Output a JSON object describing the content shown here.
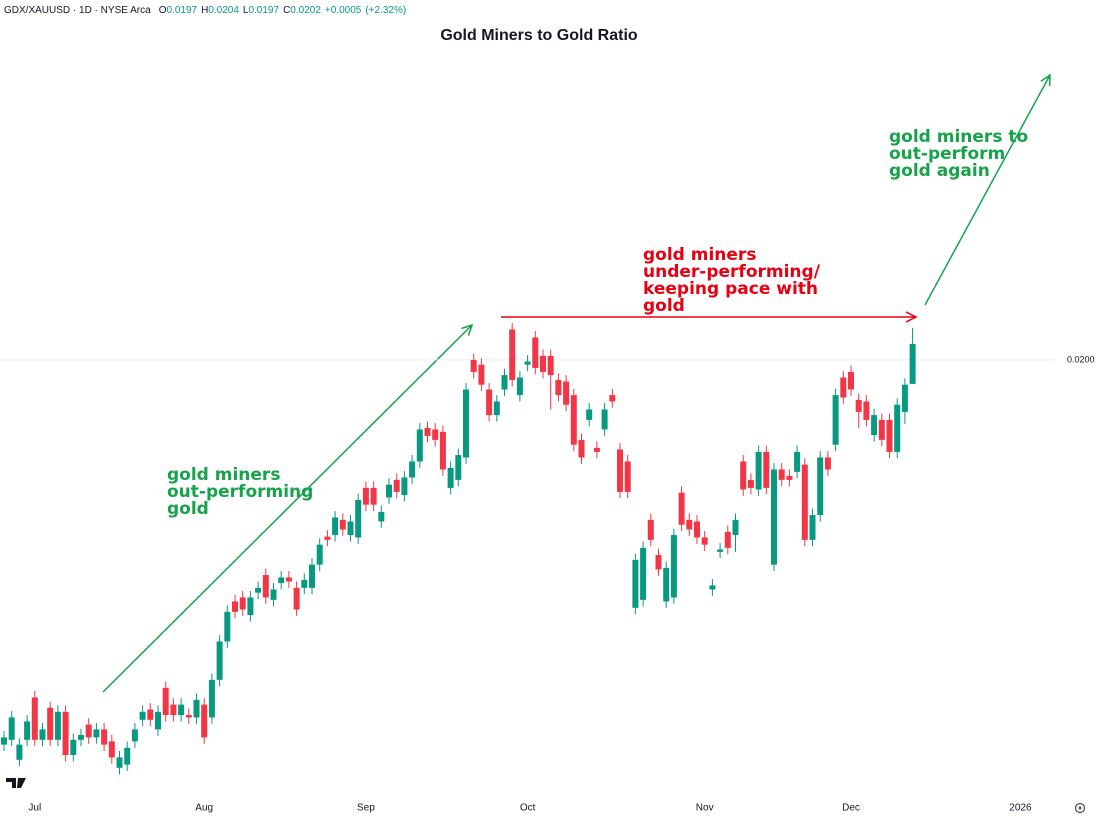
{
  "chart_data": {
    "type": "candlestick",
    "title": "Gold Miners to Gold Ratio",
    "header": {
      "symbol": "GDX/XAUUSD · 1D · NYSE Arca",
      "items": [
        {
          "letter": "O",
          "value": 0.0197
        },
        {
          "letter": "H",
          "value": 0.0204
        },
        {
          "letter": "L",
          "value": 0.0197
        },
        {
          "letter": "C",
          "value": 0.0202
        }
      ],
      "change": {
        "value": 0.0005,
        "label": "+0.0005"
      },
      "change_pct": {
        "value": 2.32,
        "label": "(+2.32%)"
      }
    },
    "up_color": "#089981",
    "down_color": "#f23645",
    "ylim": [
      0.01456,
      0.0245
    ],
    "yticks": [
      {
        "value": 0.02,
        "label": "0.0200"
      }
    ],
    "grid": true,
    "categories": [
      null,
      null,
      null,
      null,
      "Jul",
      null,
      null,
      null,
      null,
      null,
      null,
      null,
      null,
      null,
      null,
      null,
      null,
      null,
      null,
      null,
      null,
      null,
      null,
      null,
      null,
      null,
      "Aug",
      null,
      null,
      null,
      null,
      null,
      null,
      null,
      null,
      null,
      null,
      null,
      null,
      null,
      null,
      null,
      null,
      null,
      null,
      null,
      null,
      "Sep",
      null,
      null,
      null,
      null,
      null,
      null,
      null,
      null,
      null,
      null,
      null,
      null,
      null,
      null,
      null,
      null,
      null,
      null,
      null,
      null,
      "Oct",
      null,
      null,
      null,
      null,
      null,
      null,
      null,
      null,
      null,
      null,
      null,
      null,
      null,
      null,
      null,
      null,
      null,
      null,
      null,
      null,
      null,
      null,
      "Nov",
      null,
      null,
      null,
      null,
      null,
      null,
      null,
      null,
      null,
      null,
      null,
      null,
      null,
      null,
      null,
      null,
      null,
      null,
      "Dec",
      null,
      null,
      null,
      null,
      null,
      null,
      null,
      null,
      null,
      null,
      null,
      null,
      null,
      null,
      null,
      null,
      null,
      null,
      null,
      null,
      null,
      "2026"
    ],
    "open": [
      0.01519,
      0.01525,
      0.015,
      0.01525,
      0.01578,
      0.01525,
      0.01565,
      0.01525,
      0.0156,
      0.01506,
      0.01525,
      0.01544,
      0.01528,
      0.01538,
      0.01523,
      0.0149,
      0.01494,
      0.01523,
      0.0155,
      0.01563,
      0.01538,
      0.0159,
      0.01569,
      0.01556,
      0.01556,
      0.01553,
      0.01569,
      0.01553,
      0.016,
      0.01648,
      0.01698,
      0.01703,
      0.01681,
      0.01709,
      0.01731,
      0.017,
      0.01721,
      0.01728,
      0.01715,
      0.01715,
      0.01715,
      0.01744,
      0.01779,
      0.01781,
      0.018,
      0.01781,
      0.01778,
      0.0184,
      0.0184,
      0.01798,
      0.01828,
      0.0185,
      0.01831,
      0.01853,
      0.01873,
      0.01915,
      0.01913,
      0.0191,
      0.0184,
      0.0185,
      0.01878,
      0.02,
      0.01994,
      0.01963,
      0.01931,
      0.01963,
      0.02038,
      0.01956,
      0.01994,
      0.02028,
      0.02005,
      0.02005,
      0.01975,
      0.01973,
      0.01956,
      0.019,
      0.01925,
      0.0189,
      0.01913,
      0.01956,
      0.01888,
      0.01873,
      0.0169,
      0.017,
      0.018,
      0.01756,
      0.01698,
      0.01703,
      0.01834,
      0.018,
      0.01798,
      0.01778,
      0.01713,
      0.0176,
      0.01785,
      0.01781,
      0.01873,
      0.0185,
      0.01838,
      0.01885,
      0.01744,
      0.01863,
      0.01855,
      0.0186,
      0.01869,
      0.01775,
      0.01806,
      0.01878,
      0.01894,
      0.01978,
      0.01985,
      0.0195,
      0.01948,
      0.01906,
      0.01925,
      0.01925,
      0.01885,
      0.01935,
      0.0197,
      null,
      null,
      null,
      null,
      null,
      null,
      null,
      null,
      null,
      null,
      null,
      null,
      null,
      null
    ],
    "high": [
      0.01536,
      0.01561,
      0.01527,
      0.01556,
      0.01586,
      0.01546,
      0.01573,
      0.01568,
      0.01568,
      0.01533,
      0.01539,
      0.01552,
      0.01546,
      0.01546,
      0.01531,
      0.01511,
      0.01523,
      0.01546,
      0.01568,
      0.01571,
      0.01568,
      0.01598,
      0.01577,
      0.01577,
      0.01564,
      0.01583,
      0.01577,
      0.01608,
      0.01656,
      0.01693,
      0.01706,
      0.01711,
      0.01711,
      0.01723,
      0.01739,
      0.01721,
      0.01736,
      0.01736,
      0.01723,
      0.01733,
      0.01752,
      0.01777,
      0.01787,
      0.01811,
      0.01808,
      0.01806,
      0.01833,
      0.01848,
      0.01848,
      0.01818,
      0.01852,
      0.01858,
      0.01861,
      0.01881,
      0.01921,
      0.01923,
      0.01921,
      0.01918,
      0.01873,
      0.01889,
      0.01971,
      0.02008,
      0.02002,
      0.01971,
      0.01956,
      0.01989,
      0.02046,
      0.01986,
      0.02006,
      0.02036,
      0.02013,
      0.02013,
      0.01983,
      0.01981,
      0.01964,
      0.01908,
      0.01946,
      0.01898,
      0.01946,
      0.01964,
      0.01896,
      0.01881,
      0.01758,
      0.01773,
      0.01808,
      0.01764,
      0.01748,
      0.01789,
      0.01842,
      0.01808,
      0.01806,
      0.01786,
      0.01726,
      0.01771,
      0.01793,
      0.01808,
      0.01881,
      0.01858,
      0.01893,
      0.01893,
      0.01871,
      0.01871,
      0.01863,
      0.01893,
      0.01877,
      0.01814,
      0.01886,
      0.01886,
      0.01964,
      0.01986,
      0.01993,
      0.01958,
      0.01956,
      0.01939,
      0.01933,
      0.01933,
      0.01952,
      0.01977,
      0.0204,
      null,
      null,
      null,
      null,
      null,
      null,
      null,
      null,
      null,
      null,
      null,
      null,
      null,
      null
    ],
    "low": [
      0.01511,
      0.01517,
      0.01492,
      0.01517,
      0.01517,
      0.01517,
      0.01517,
      0.01517,
      0.01498,
      0.01498,
      0.01517,
      0.0152,
      0.0152,
      0.01511,
      0.01495,
      0.01482,
      0.01486,
      0.01515,
      0.01542,
      0.01542,
      0.0153,
      0.01548,
      0.01548,
      0.01548,
      0.01545,
      0.01545,
      0.0152,
      0.01545,
      0.01592,
      0.0164,
      0.01677,
      0.0168,
      0.01673,
      0.01701,
      0.01695,
      0.01692,
      0.01713,
      0.01715,
      0.0168,
      0.01707,
      0.01707,
      0.01736,
      0.01767,
      0.01773,
      0.0178,
      0.01773,
      0.0177,
      0.01811,
      0.01811,
      0.0179,
      0.0182,
      0.01827,
      0.01823,
      0.01845,
      0.01865,
      0.01897,
      0.01892,
      0.01855,
      0.01832,
      0.01842,
      0.0187,
      0.01977,
      0.01961,
      0.01923,
      0.01923,
      0.01955,
      0.01967,
      0.01948,
      0.01986,
      0.01982,
      0.01977,
      0.01938,
      0.01948,
      0.01936,
      0.01886,
      0.0187,
      0.01917,
      0.01877,
      0.01905,
      0.0194,
      0.01827,
      0.01827,
      0.01682,
      0.01692,
      0.01767,
      0.0173,
      0.0169,
      0.01695,
      0.01786,
      0.0178,
      0.0177,
      0.01761,
      0.01705,
      0.01752,
      0.01757,
      0.0176,
      0.0183,
      0.01832,
      0.0183,
      0.01832,
      0.01736,
      0.01842,
      0.01842,
      0.01852,
      0.01767,
      0.01767,
      0.01798,
      0.01855,
      0.01886,
      0.01945,
      0.01955,
      0.01915,
      0.01917,
      0.01898,
      0.01892,
      0.01877,
      0.01877,
      0.0192,
      0.0197,
      null,
      null,
      null,
      null,
      null,
      null,
      null,
      null,
      null,
      null,
      null,
      null,
      null,
      null
    ],
    "close": [
      0.01528,
      0.01553,
      0.01519,
      0.01548,
      0.01525,
      0.01538,
      0.01525,
      0.0156,
      0.01506,
      0.01525,
      0.01531,
      0.01528,
      0.01538,
      0.01519,
      0.01503,
      0.01503,
      0.01515,
      0.01538,
      0.0156,
      0.0155,
      0.0156,
      0.01556,
      0.01556,
      0.01569,
      0.01553,
      0.01575,
      0.01528,
      0.016,
      0.01648,
      0.01685,
      0.01685,
      0.01688,
      0.01703,
      0.01715,
      0.01703,
      0.01713,
      0.01728,
      0.01723,
      0.01688,
      0.01725,
      0.01744,
      0.01769,
      0.01775,
      0.01803,
      0.01788,
      0.01798,
      0.01825,
      0.01819,
      0.01819,
      0.0181,
      0.01844,
      0.01835,
      0.01853,
      0.01873,
      0.01913,
      0.01905,
      0.019,
      0.01863,
      0.01865,
      0.01881,
      0.01963,
      0.01985,
      0.01969,
      0.01931,
      0.01948,
      0.01981,
      0.01975,
      0.01978,
      0.01998,
      0.0199,
      0.01985,
      0.01981,
      0.01956,
      0.01944,
      0.01894,
      0.01878,
      0.01938,
      0.01885,
      0.01938,
      0.01948,
      0.01835,
      0.01835,
      0.0175,
      0.01765,
      0.01775,
      0.01738,
      0.0174,
      0.01781,
      0.01794,
      0.01788,
      0.01778,
      0.01769,
      0.01718,
      0.01763,
      0.01765,
      0.018,
      0.01838,
      0.0184,
      0.01885,
      0.0184,
      0.01863,
      0.0185,
      0.0185,
      0.01885,
      0.01775,
      0.01806,
      0.01878,
      0.01863,
      0.01956,
      0.01953,
      0.01963,
      0.01935,
      0.01925,
      0.01931,
      0.019,
      0.01885,
      0.01944,
      0.01969,
      0.0202,
      null,
      null,
      null,
      null,
      null,
      null,
      null,
      null,
      null,
      null,
      null,
      null,
      null,
      null
    ],
    "annotations": [
      {
        "lines": [
          "gold miners",
          "out-performing",
          "gold"
        ],
        "color": "#16a34a"
      },
      {
        "lines": [
          "gold miners",
          "under-performing/",
          "keeping pace with",
          "gold"
        ],
        "color": "#e60012"
      },
      {
        "lines": [
          "gold miners to",
          "out-perform",
          "gold again"
        ],
        "color": "#16a34a"
      }
    ]
  }
}
